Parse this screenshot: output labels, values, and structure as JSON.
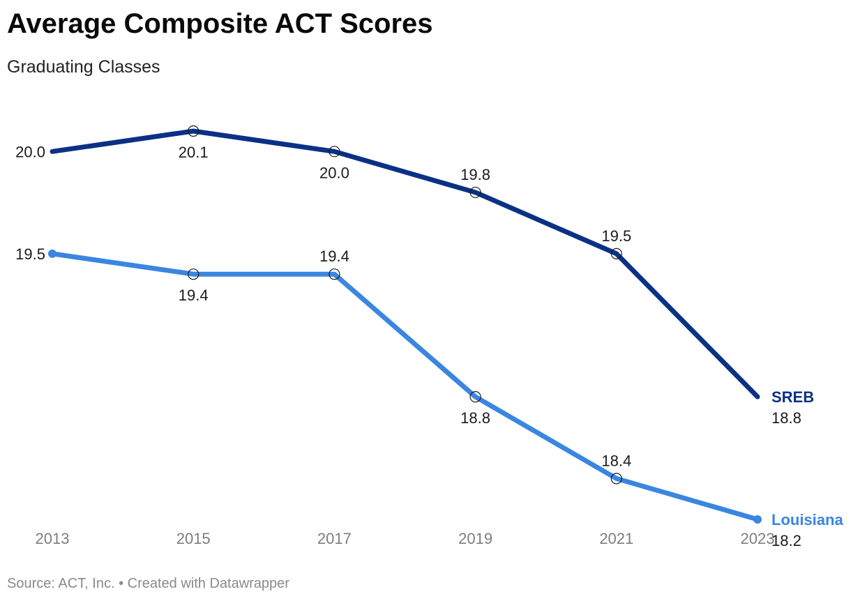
{
  "header": {
    "title": "Average Composite ACT Scores",
    "subtitle": "Graduating Classes"
  },
  "footer": {
    "source": "Source: ACT, Inc. • Created with Datawrapper"
  },
  "chart_data": {
    "type": "line",
    "x": [
      "2013",
      "2015",
      "2017",
      "2019",
      "2021",
      "2023"
    ],
    "ylim": [
      18.2,
      20.1
    ],
    "grid": false,
    "legend": "direct labels at line ends (right)",
    "series": [
      {
        "name": "SREB",
        "color": "#0b3185",
        "values": [
          20.0,
          20.1,
          20.0,
          19.8,
          19.5,
          18.8
        ],
        "labels": [
          "20.0",
          "20.1",
          "20.0",
          "19.8",
          "19.5",
          "18.8"
        ]
      },
      {
        "name": "Louisiana",
        "color": "#3a86e0",
        "values": [
          19.5,
          19.4,
          19.4,
          18.8,
          18.4,
          18.2
        ],
        "labels": [
          "19.5",
          "19.4",
          "19.4",
          "18.8",
          "18.4",
          "18.2"
        ]
      }
    ]
  }
}
